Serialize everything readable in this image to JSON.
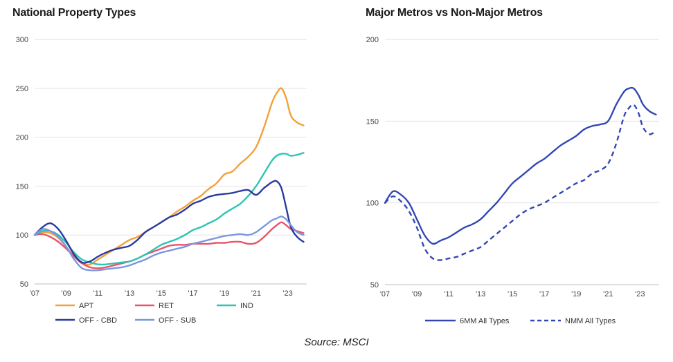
{
  "source": "Source: MSCI",
  "chart_data": [
    {
      "type": "line",
      "title": "National Property Types",
      "xlabel": "",
      "ylabel": "",
      "xlim": [
        2007,
        2024.2
      ],
      "ylim": [
        50,
        300
      ],
      "yticks": [
        50,
        100,
        150,
        200,
        250,
        300
      ],
      "xticks": [
        2007,
        2009,
        2011,
        2013,
        2015,
        2017,
        2019,
        2021,
        2023
      ],
      "xtick_labels": [
        "'07",
        "'09",
        "'11",
        "'13",
        "'15",
        "'17",
        "'19",
        "'21",
        "'23"
      ],
      "grid": true,
      "legend_position": "bottom",
      "series": [
        {
          "name": "APT",
          "color": "#f4a03a",
          "style": "solid",
          "x": [
            2007,
            2007.5,
            2008,
            2008.5,
            2009,
            2009.5,
            2010,
            2010.5,
            2011,
            2011.5,
            2012,
            2012.5,
            2013,
            2013.5,
            2014,
            2014.5,
            2015,
            2015.5,
            2016,
            2016.5,
            2017,
            2017.5,
            2018,
            2018.5,
            2019,
            2019.5,
            2020,
            2020.5,
            2021,
            2021.5,
            2022,
            2022.3,
            2022.6,
            2022.9,
            2023.2,
            2023.6,
            2024
          ],
          "y": [
            100,
            103,
            102,
            97,
            88,
            78,
            71,
            70,
            75,
            80,
            85,
            90,
            95,
            98,
            103,
            108,
            113,
            118,
            124,
            129,
            135,
            140,
            147,
            153,
            162,
            165,
            173,
            180,
            190,
            210,
            235,
            245,
            250,
            240,
            222,
            215,
            212
          ]
        },
        {
          "name": "RET",
          "color": "#e8546a",
          "style": "solid",
          "x": [
            2007,
            2007.5,
            2008,
            2008.5,
            2009,
            2009.5,
            2010,
            2010.5,
            2011,
            2011.5,
            2012,
            2012.5,
            2013,
            2013.5,
            2014,
            2014.5,
            2015,
            2015.5,
            2016,
            2016.5,
            2017,
            2017.5,
            2018,
            2018.5,
            2019,
            2019.5,
            2020,
            2020.5,
            2021,
            2021.5,
            2022,
            2022.3,
            2022.6,
            2022.9,
            2023.2,
            2023.6,
            2024
          ],
          "y": [
            100,
            101,
            98,
            93,
            86,
            78,
            71,
            67,
            66,
            67,
            69,
            71,
            73,
            76,
            80,
            83,
            86,
            89,
            90,
            90,
            91,
            91,
            91,
            92,
            92,
            93,
            93,
            91,
            92,
            98,
            106,
            110,
            113,
            110,
            106,
            104,
            102
          ]
        },
        {
          "name": "IND",
          "color": "#2cc4b4",
          "style": "solid",
          "x": [
            2007,
            2007.5,
            2008,
            2008.5,
            2009,
            2009.5,
            2010,
            2010.5,
            2011,
            2011.5,
            2012,
            2012.5,
            2013,
            2013.5,
            2014,
            2014.5,
            2015,
            2015.5,
            2016,
            2016.5,
            2017,
            2017.5,
            2018,
            2018.5,
            2019,
            2019.5,
            2020,
            2020.5,
            2021,
            2021.5,
            2022,
            2022.3,
            2022.6,
            2022.9,
            2023.2,
            2023.6,
            2024
          ],
          "y": [
            100,
            104,
            104,
            100,
            92,
            82,
            75,
            72,
            70,
            70,
            71,
            72,
            73,
            76,
            80,
            85,
            90,
            93,
            96,
            100,
            105,
            108,
            112,
            116,
            122,
            127,
            132,
            140,
            150,
            163,
            176,
            181,
            183,
            183,
            181,
            182,
            184
          ]
        },
        {
          "name": "OFF - CBD",
          "color": "#2b3a9e",
          "style": "solid",
          "x": [
            2007,
            2007.5,
            2008,
            2008.5,
            2009,
            2009.5,
            2010,
            2010.5,
            2011,
            2011.5,
            2012,
            2012.5,
            2013,
            2013.5,
            2014,
            2014.5,
            2015,
            2015.5,
            2016,
            2016.5,
            2017,
            2017.5,
            2018,
            2018.5,
            2019,
            2019.5,
            2020,
            2020.5,
            2021,
            2021.5,
            2022,
            2022.3,
            2022.6,
            2022.9,
            2023.2,
            2023.6,
            2024
          ],
          "y": [
            100,
            108,
            112,
            106,
            94,
            80,
            72,
            73,
            78,
            82,
            85,
            87,
            89,
            95,
            103,
            108,
            113,
            118,
            121,
            126,
            132,
            135,
            139,
            141,
            142,
            143,
            145,
            146,
            141,
            148,
            154,
            155,
            148,
            128,
            108,
            98,
            93
          ]
        },
        {
          "name": "OFF - SUB",
          "color": "#7b97de",
          "style": "solid",
          "x": [
            2007,
            2007.5,
            2008,
            2008.5,
            2009,
            2009.5,
            2010,
            2010.5,
            2011,
            2011.5,
            2012,
            2012.5,
            2013,
            2013.5,
            2014,
            2014.5,
            2015,
            2015.5,
            2016,
            2016.5,
            2017,
            2017.5,
            2018,
            2018.5,
            2019,
            2019.5,
            2020,
            2020.5,
            2021,
            2021.5,
            2022,
            2022.3,
            2022.6,
            2022.9,
            2023.2,
            2023.6,
            2024
          ],
          "y": [
            100,
            106,
            104,
            98,
            88,
            75,
            66,
            64,
            64,
            65,
            66,
            67,
            69,
            72,
            75,
            79,
            82,
            84,
            86,
            88,
            91,
            93,
            95,
            97,
            99,
            100,
            101,
            100,
            103,
            109,
            115,
            117,
            119,
            116,
            110,
            103,
            100
          ]
        }
      ]
    },
    {
      "type": "line",
      "title": "Major Metros vs Non-Major Metros",
      "xlabel": "",
      "ylabel": "",
      "xlim": [
        2007,
        2024.2
      ],
      "ylim": [
        50,
        200
      ],
      "yticks": [
        50,
        100,
        150,
        200
      ],
      "xticks": [
        2007,
        2009,
        2011,
        2013,
        2015,
        2017,
        2019,
        2021,
        2023
      ],
      "xtick_labels": [
        "'07",
        "'09",
        "'11",
        "'13",
        "'15",
        "'17",
        "'19",
        "'21",
        "'23"
      ],
      "grid": true,
      "legend_position": "bottom",
      "series": [
        {
          "name": "6MM All Types",
          "color": "#3347b3",
          "style": "solid",
          "x": [
            2007,
            2007.5,
            2008,
            2008.5,
            2009,
            2009.5,
            2010,
            2010.5,
            2011,
            2011.5,
            2012,
            2012.5,
            2013,
            2013.5,
            2014,
            2014.5,
            2015,
            2015.5,
            2016,
            2016.5,
            2017,
            2017.5,
            2018,
            2018.5,
            2019,
            2019.5,
            2020,
            2020.5,
            2021,
            2021.5,
            2022,
            2022.3,
            2022.6,
            2022.9,
            2023.2,
            2023.6,
            2024
          ],
          "y": [
            100,
            107,
            105,
            100,
            90,
            80,
            75,
            77,
            79,
            82,
            85,
            87,
            90,
            95,
            100,
            106,
            112,
            116,
            120,
            124,
            127,
            131,
            135,
            138,
            141,
            145,
            147,
            148,
            150,
            160,
            168,
            170,
            170,
            166,
            160,
            156,
            154
          ]
        },
        {
          "name": "NMM All Types",
          "color": "#3347b3",
          "style": "dashed",
          "x": [
            2007,
            2007.5,
            2008,
            2008.5,
            2009,
            2009.5,
            2010,
            2010.5,
            2011,
            2011.5,
            2012,
            2012.5,
            2013,
            2013.5,
            2014,
            2014.5,
            2015,
            2015.5,
            2016,
            2016.5,
            2017,
            2017.5,
            2018,
            2018.5,
            2019,
            2019.5,
            2020,
            2020.5,
            2021,
            2021.5,
            2022,
            2022.3,
            2022.6,
            2022.9,
            2023.2,
            2023.6,
            2024
          ],
          "y": [
            100,
            104,
            101,
            95,
            85,
            72,
            66,
            65,
            66,
            67,
            69,
            71,
            73,
            77,
            81,
            85,
            89,
            93,
            96,
            98,
            100,
            103,
            106,
            109,
            112,
            114,
            118,
            120,
            124,
            136,
            153,
            158,
            160,
            155,
            146,
            142,
            144
          ]
        }
      ]
    }
  ]
}
